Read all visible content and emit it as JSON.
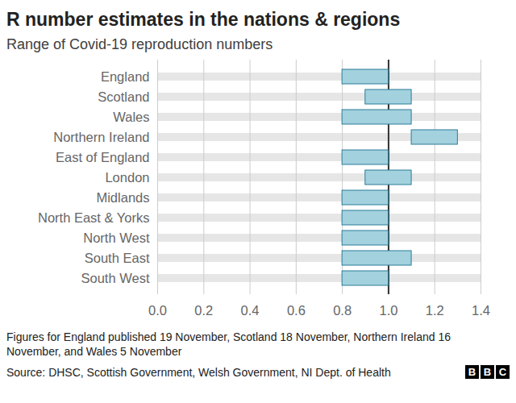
{
  "chart_data": {
    "type": "bar",
    "orientation": "horizontal",
    "title": "R number estimates in the nations & regions",
    "subtitle": "Range of Covid-19 reproduction numbers",
    "categories": [
      "England",
      "Scotland",
      "Wales",
      "Northern Ireland",
      "East of England",
      "London",
      "Midlands",
      "North East & Yorks",
      "North West",
      "South East",
      "South West"
    ],
    "values": [
      [
        0.8,
        1.0
      ],
      [
        0.9,
        1.1
      ],
      [
        0.8,
        1.1
      ],
      [
        1.1,
        1.3
      ],
      [
        0.8,
        1.0
      ],
      [
        0.9,
        1.1
      ],
      [
        0.8,
        1.0
      ],
      [
        0.8,
        1.0
      ],
      [
        0.8,
        1.0
      ],
      [
        0.8,
        1.1
      ],
      [
        0.8,
        1.0
      ]
    ],
    "color": "#a3d1de",
    "xlim": [
      0,
      1.4
    ],
    "xticks": [
      {
        "value": 0,
        "label": "0.0"
      },
      0.2,
      0.4,
      0.6,
      0.8,
      {
        "value": 1,
        "label": "1.0"
      },
      1.2,
      1.4
    ],
    "reference_line": 1,
    "grid": true,
    "note": "Figures for England published 19 November, Scotland 18 November, Northern Ireland 16 November, and Wales 5 November",
    "source": "Source: DHSC, Scottish Government, Welsh Government, NI Dept. of Health",
    "logo": "BBC"
  }
}
